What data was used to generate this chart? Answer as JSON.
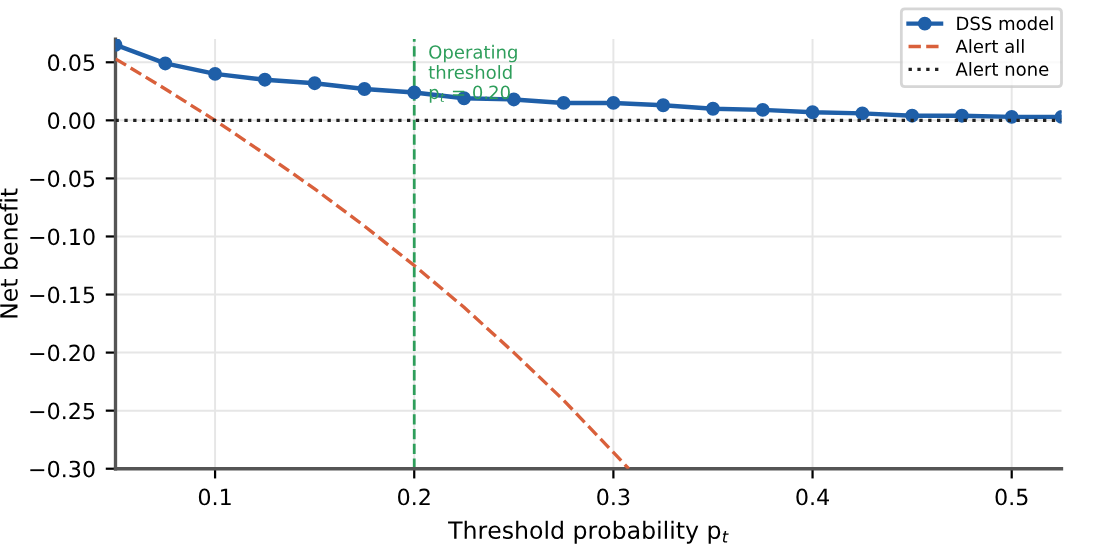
{
  "chart_data": {
    "type": "line",
    "xlabel": "Threshold probability p$_{t}$",
    "ylabel": "Net benefit",
    "xlim": [
      0.05,
      0.525
    ],
    "ylim": [
      -0.3,
      0.07
    ],
    "xticks": [
      0.1,
      0.2,
      0.3,
      0.4,
      0.5
    ],
    "yticks": [
      {
        "value": 0.05,
        "label": "0.05"
      },
      {
        "value": 0.0,
        "label": "0.00"
      },
      {
        "value": -0.05,
        "label": "−0.05"
      },
      {
        "value": -0.1,
        "label": "−0.10"
      },
      {
        "value": -0.15,
        "label": "−0.15"
      },
      {
        "value": -0.2,
        "label": "−0.20"
      },
      {
        "value": -0.25,
        "label": "−0.25"
      },
      {
        "value": -0.3,
        "label": "−0.30"
      }
    ],
    "grid": true,
    "legend": "top right",
    "series": [
      {
        "name": "DSS model",
        "color": "#1f5fa8",
        "marker": "circle",
        "line_style": "solid",
        "x": [
          0.05,
          0.075,
          0.1,
          0.125,
          0.15,
          0.175,
          0.2,
          0.225,
          0.25,
          0.275,
          0.3,
          0.325,
          0.35,
          0.375,
          0.4,
          0.425,
          0.45,
          0.475,
          0.5,
          0.525
        ],
        "values": [
          0.065,
          0.049,
          0.04,
          0.035,
          0.032,
          0.027,
          0.024,
          0.019,
          0.018,
          0.015,
          0.015,
          0.013,
          0.01,
          0.009,
          0.007,
          0.006,
          0.004,
          0.004,
          0.003,
          0.003
        ]
      },
      {
        "name": "Alert all",
        "color": "#d9603b",
        "marker": "none",
        "line_style": "dashed",
        "x": [
          0.05,
          0.075,
          0.1,
          0.125,
          0.15,
          0.175,
          0.2,
          0.225,
          0.25,
          0.275,
          0.3,
          0.3077
        ],
        "values": [
          0.053,
          0.027,
          0.0,
          -0.029,
          -0.059,
          -0.091,
          -0.125,
          -0.161,
          -0.2,
          -0.241,
          -0.286,
          -0.3
        ]
      },
      {
        "name": "Alert none",
        "color": "#222222",
        "marker": "none",
        "line_style": "dotted",
        "x": [
          0.05,
          0.525
        ],
        "values": [
          0.0,
          0.0
        ]
      }
    ],
    "ref_lines": [
      {
        "axis": "x",
        "value": 0.2,
        "label": "Operating\nthreshold\np$_{t}$ = 0.20",
        "color": "#2e9e5b",
        "line_style": "dashed"
      }
    ]
  }
}
